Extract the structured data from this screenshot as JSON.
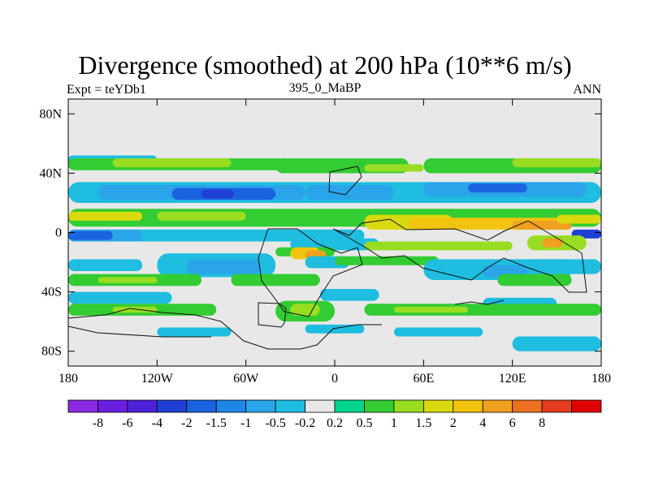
{
  "chart_data": {
    "type": "heatmap",
    "title": "Divergence (smoothed) at 200 hPa (10**6 m/s)",
    "subtitle_left": "Expt = teYDb1",
    "subtitle_center": "395_0_MaBP",
    "subtitle_right": "ANN",
    "xlim": [
      -180,
      180
    ],
    "ylim": [
      -90,
      90
    ],
    "x_ticks": [
      {
        "value": -180,
        "label": "180"
      },
      {
        "value": -120,
        "label": "120W"
      },
      {
        "value": -60,
        "label": "60W"
      },
      {
        "value": 0,
        "label": "0"
      },
      {
        "value": 60,
        "label": "60E"
      },
      {
        "value": 120,
        "label": "120E"
      },
      {
        "value": 180,
        "label": "180"
      }
    ],
    "y_ticks": [
      {
        "value": 80,
        "label": "80N"
      },
      {
        "value": 40,
        "label": "40N"
      },
      {
        "value": 0,
        "label": "0"
      },
      {
        "value": -40,
        "label": "40S"
      },
      {
        "value": -80,
        "label": "80S"
      }
    ],
    "colorbar": {
      "labels": [
        "-8",
        "-6",
        "-4",
        "-2",
        "-1.5",
        "-1",
        "-0.5",
        "-0.2",
        "0.2",
        "0.5",
        "1",
        "1.5",
        "2",
        "4",
        "6",
        "8"
      ],
      "colors": [
        "#8a2be2",
        "#6a1fe0",
        "#4b22d8",
        "#1f3fd6",
        "#1a64e0",
        "#1f86e6",
        "#2aa5ea",
        "#1fbde0",
        "#e8e8e8",
        "#00d48e",
        "#33cc33",
        "#99dd22",
        "#d9d90f",
        "#f2c40f",
        "#f0a020",
        "#ed7020",
        "#e53b1e",
        "#e00000"
      ]
    },
    "regions": [
      {
        "level": -0.5,
        "lon": -180,
        "lat": 52,
        "w": 60,
        "h": 6
      },
      {
        "level": 0.5,
        "lon": -180,
        "lat": 50,
        "w": 150,
        "h": 8
      },
      {
        "level": 1,
        "lon": -150,
        "lat": 50,
        "w": 80,
        "h": 6
      },
      {
        "level": 0.5,
        "lon": -40,
        "lat": 50,
        "w": 90,
        "h": 10
      },
      {
        "level": 1,
        "lon": 20,
        "lat": 46,
        "w": 40,
        "h": 5
      },
      {
        "level": 0.5,
        "lon": 60,
        "lat": 50,
        "w": 120,
        "h": 10
      },
      {
        "level": 1,
        "lon": 120,
        "lat": 50,
        "w": 60,
        "h": 6
      },
      {
        "level": -0.5,
        "lon": -180,
        "lat": 34,
        "w": 360,
        "h": 14
      },
      {
        "level": -1,
        "lon": -160,
        "lat": 32,
        "w": 140,
        "h": 10
      },
      {
        "level": -2,
        "lon": -110,
        "lat": 30,
        "w": 70,
        "h": 8
      },
      {
        "level": -4,
        "lon": -90,
        "lat": 29,
        "w": 22,
        "h": 6
      },
      {
        "level": -1,
        "lon": -20,
        "lat": 32,
        "w": 60,
        "h": 10
      },
      {
        "level": -1,
        "lon": 60,
        "lat": 34,
        "w": 110,
        "h": 10
      },
      {
        "level": -2,
        "lon": 90,
        "lat": 33,
        "w": 40,
        "h": 6
      },
      {
        "level": 0.5,
        "lon": -180,
        "lat": 16,
        "w": 360,
        "h": 12
      },
      {
        "level": 1.5,
        "lon": -180,
        "lat": 14,
        "w": 50,
        "h": 6
      },
      {
        "level": 1,
        "lon": -120,
        "lat": 14,
        "w": 60,
        "h": 6
      },
      {
        "level": 1.5,
        "lon": 20,
        "lat": 12,
        "w": 60,
        "h": 10
      },
      {
        "level": 2,
        "lon": 50,
        "lat": 10,
        "w": 110,
        "h": 8
      },
      {
        "level": 4,
        "lon": 120,
        "lat": 8,
        "w": 40,
        "h": 6
      },
      {
        "level": 1.5,
        "lon": 150,
        "lat": 12,
        "w": 30,
        "h": 6
      },
      {
        "level": -0.5,
        "lon": -180,
        "lat": 2,
        "w": 200,
        "h": 8
      },
      {
        "level": -1,
        "lon": -180,
        "lat": 2,
        "w": 50,
        "h": 8
      },
      {
        "level": -2,
        "lon": -180,
        "lat": 1,
        "w": 30,
        "h": 6
      },
      {
        "level": -4,
        "lon": 160,
        "lat": 2,
        "w": 20,
        "h": 6
      },
      {
        "level": -0.5,
        "lon": -30,
        "lat": -4,
        "w": 60,
        "h": 8
      },
      {
        "level": 1,
        "lon": 20,
        "lat": -6,
        "w": 100,
        "h": 6
      },
      {
        "level": 0.5,
        "lon": -40,
        "lat": -10,
        "w": 40,
        "h": 6
      },
      {
        "level": 2,
        "lon": -30,
        "lat": -10,
        "w": 20,
        "h": 8
      },
      {
        "level": 4,
        "lon": -20,
        "lat": -12,
        "w": 14,
        "h": 6
      },
      {
        "level": -0.5,
        "lon": -180,
        "lat": -18,
        "w": 50,
        "h": 8
      },
      {
        "level": -0.5,
        "lon": -120,
        "lat": -14,
        "w": 80,
        "h": 16
      },
      {
        "level": -1,
        "lon": -100,
        "lat": -18,
        "w": 50,
        "h": 10
      },
      {
        "level": -0.5,
        "lon": -20,
        "lat": -16,
        "w": 30,
        "h": 8
      },
      {
        "level": 0.5,
        "lon": 0,
        "lat": -16,
        "w": 70,
        "h": 6
      },
      {
        "level": -0.5,
        "lon": 60,
        "lat": -18,
        "w": 100,
        "h": 14
      },
      {
        "level": -1,
        "lon": 100,
        "lat": -22,
        "w": 30,
        "h": 8
      },
      {
        "level": 1,
        "lon": 130,
        "lat": -2,
        "w": 40,
        "h": 10
      },
      {
        "level": 4,
        "lon": 140,
        "lat": -4,
        "w": 14,
        "h": 6
      },
      {
        "level": -0.5,
        "lon": 130,
        "lat": -18,
        "w": 50,
        "h": 10
      },
      {
        "level": 0.5,
        "lon": -180,
        "lat": -28,
        "w": 90,
        "h": 8
      },
      {
        "level": 1,
        "lon": -160,
        "lat": -30,
        "w": 40,
        "h": 4
      },
      {
        "level": 0.5,
        "lon": -70,
        "lat": -28,
        "w": 60,
        "h": 8
      },
      {
        "level": 0.5,
        "lon": 110,
        "lat": -28,
        "w": 50,
        "h": 8
      },
      {
        "level": -0.5,
        "lon": -180,
        "lat": -40,
        "w": 70,
        "h": 8
      },
      {
        "level": -0.5,
        "lon": -10,
        "lat": -38,
        "w": 40,
        "h": 8
      },
      {
        "level": -0.5,
        "lon": 100,
        "lat": -44,
        "w": 50,
        "h": 8
      },
      {
        "level": 0.5,
        "lon": -180,
        "lat": -48,
        "w": 100,
        "h": 8
      },
      {
        "level": 1,
        "lon": -150,
        "lat": -50,
        "w": 30,
        "h": 4
      },
      {
        "level": 0.5,
        "lon": -40,
        "lat": -46,
        "w": 40,
        "h": 14
      },
      {
        "level": 1,
        "lon": -30,
        "lat": -48,
        "w": 20,
        "h": 8
      },
      {
        "level": 0.5,
        "lon": 20,
        "lat": -48,
        "w": 160,
        "h": 8
      },
      {
        "level": 1,
        "lon": 40,
        "lat": -50,
        "w": 50,
        "h": 4
      },
      {
        "level": -0.5,
        "lon": -120,
        "lat": -64,
        "w": 50,
        "h": 6
      },
      {
        "level": -0.5,
        "lon": -20,
        "lat": -62,
        "w": 40,
        "h": 6
      },
      {
        "level": -0.5,
        "lon": 40,
        "lat": -64,
        "w": 60,
        "h": 6
      },
      {
        "level": -0.5,
        "lon": 120,
        "lat": -70,
        "w": 60,
        "h": 10
      }
    ]
  }
}
